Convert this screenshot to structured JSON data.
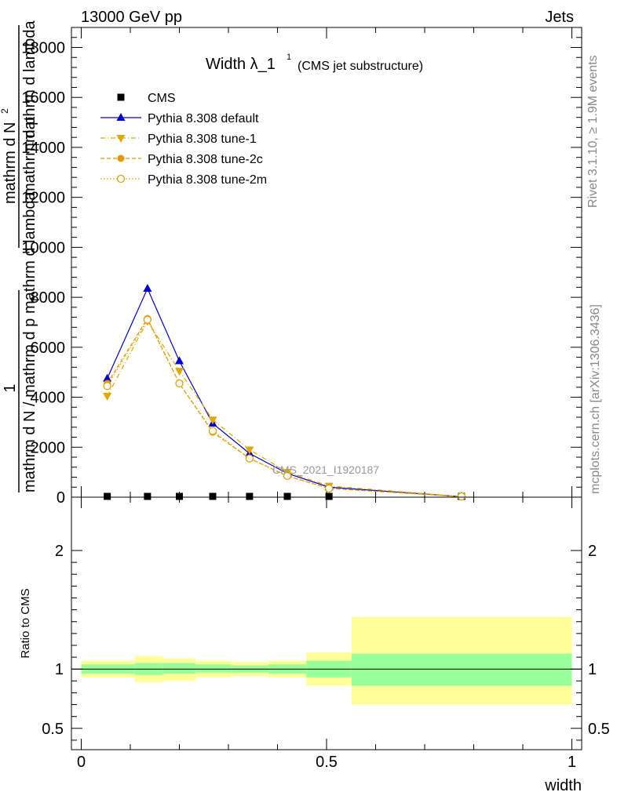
{
  "header": {
    "left": "13000 GeV pp",
    "right": "Jets"
  },
  "side_labels": {
    "rivet": "Rivet 3.1.10, ≥ 1.9M events",
    "mcplots": "mcplots.cern.ch [arXiv:1306.3436]"
  },
  "watermark": "CMS_2021_I1920187",
  "chart_data": [
    {
      "type": "line",
      "title": "Width λ_1",
      "title_sup": "1",
      "subtitle": "(CMS jet substructure)",
      "xlabel": "",
      "ylabel_lines": [
        "1",
        "mathrm d N / mathrm d p_T mathrm d lambda",
        "mathrm d^2N",
        "mathrm d p_T mathrm d lambda"
      ],
      "ylabel_numerator": "1",
      "ylabel_frac_den": "mathrm d N",
      "ylabel_main": "mathrm d N / mathrm d p",
      "ylabel_sub_T": "T",
      "ylabel_mid": "mathrm d p",
      "ylabel_mid2": "mathrm d lambda",
      "ylabel_top": "mathrm d",
      "ylabel_top_sup": "2",
      "ylabel_top_N": "N",
      "ylabel_dpt": "mathrm d p",
      "ylabel_dlambda": "mathrm d lambda",
      "ylim": [
        0,
        18800
      ],
      "yticks": [
        0,
        2000,
        4000,
        6000,
        8000,
        10000,
        12000,
        14000,
        16000,
        18000
      ],
      "ytick_labels": [
        "0",
        "2000",
        "4000",
        "6000",
        "8000",
        "10000",
        "12000",
        "14000",
        "16000",
        "18000"
      ],
      "xlim": [
        0,
        1
      ],
      "legend_position": "top-left",
      "series": [
        {
          "name": "CMS",
          "style": "data",
          "color": "#000000",
          "x": [
            0.053,
            0.135,
            0.2,
            0.268,
            0.343,
            0.42,
            0.505,
            0.775
          ],
          "y": [
            0,
            0,
            0,
            0,
            0,
            0,
            0,
            0
          ]
        },
        {
          "name": "Pythia 8.308 default",
          "style": "solid-triangle-up",
          "color": "#0000cc",
          "x": [
            0.053,
            0.135,
            0.2,
            0.268,
            0.343,
            0.42,
            0.505,
            0.775
          ],
          "y": [
            4750,
            8350,
            5450,
            2950,
            1750,
            950,
            400,
            20
          ]
        },
        {
          "name": "Pythia 8.308 tune-1",
          "style": "dashdot-triangle-down",
          "color": "#e0a800",
          "x": [
            0.053,
            0.135,
            0.2,
            0.268,
            0.343,
            0.42,
            0.505,
            0.775
          ],
          "y": [
            4050,
            7050,
            5050,
            3100,
            1900,
            1000,
            450,
            20
          ]
        },
        {
          "name": "Pythia 8.308 tune-2c",
          "style": "dashed-circle",
          "color": "#e09a00",
          "x": [
            0.053,
            0.135,
            0.2,
            0.268,
            0.343,
            0.42,
            0.505,
            0.775
          ],
          "y": [
            4550,
            7150,
            4550,
            2600,
            1550,
            850,
            350,
            20
          ]
        },
        {
          "name": "Pythia 8.308 tune-2m",
          "style": "dotted-open-circle",
          "color": "#e09a00",
          "x": [
            0.053,
            0.135,
            0.2,
            0.268,
            0.343,
            0.42,
            0.505,
            0.775
          ],
          "y": [
            4450,
            7100,
            4550,
            2650,
            1550,
            850,
            350,
            20
          ]
        }
      ]
    },
    {
      "type": "area",
      "xlabel": "width",
      "ylabel": "Ratio to CMS",
      "xlim": [
        -0.02,
        1.02
      ],
      "ylim": [
        0.32,
        2.45
      ],
      "xticks": [
        0,
        0.5,
        1
      ],
      "xtick_labels": [
        "0",
        "0.5",
        "1"
      ],
      "yticks": [
        0.5,
        1,
        2
      ],
      "ytick_labels": [
        "0.5",
        "1",
        "2"
      ],
      "reference_line": 1,
      "bins": [
        {
          "lo": 0.0,
          "hi": 0.109,
          "stat_lo": 0.96,
          "stat_hi": 1.04,
          "tot_lo": 0.93,
          "tot_hi": 1.07
        },
        {
          "lo": 0.109,
          "hi": 0.167,
          "stat_lo": 0.95,
          "stat_hi": 1.05,
          "tot_lo": 0.89,
          "tot_hi": 1.11
        },
        {
          "lo": 0.167,
          "hi": 0.233,
          "stat_lo": 0.96,
          "stat_hi": 1.05,
          "tot_lo": 0.9,
          "tot_hi": 1.09
        },
        {
          "lo": 0.233,
          "hi": 0.306,
          "stat_lo": 0.97,
          "stat_hi": 1.04,
          "tot_lo": 0.93,
          "tot_hi": 1.07
        },
        {
          "lo": 0.306,
          "hi": 0.382,
          "stat_lo": 0.97,
          "stat_hi": 1.03,
          "tot_lo": 0.94,
          "tot_hi": 1.06
        },
        {
          "lo": 0.382,
          "hi": 0.459,
          "stat_lo": 0.96,
          "stat_hi": 1.04,
          "tot_lo": 0.93,
          "tot_hi": 1.07
        },
        {
          "lo": 0.459,
          "hi": 0.551,
          "stat_lo": 0.93,
          "stat_hi": 1.07,
          "tot_lo": 0.86,
          "tot_hi": 1.14
        },
        {
          "lo": 0.551,
          "hi": 1.0,
          "stat_lo": 0.86,
          "stat_hi": 1.13,
          "tot_lo": 0.7,
          "tot_hi": 1.44
        }
      ],
      "colors": {
        "stat": "#99ff99",
        "total": "#ffff99"
      }
    }
  ]
}
